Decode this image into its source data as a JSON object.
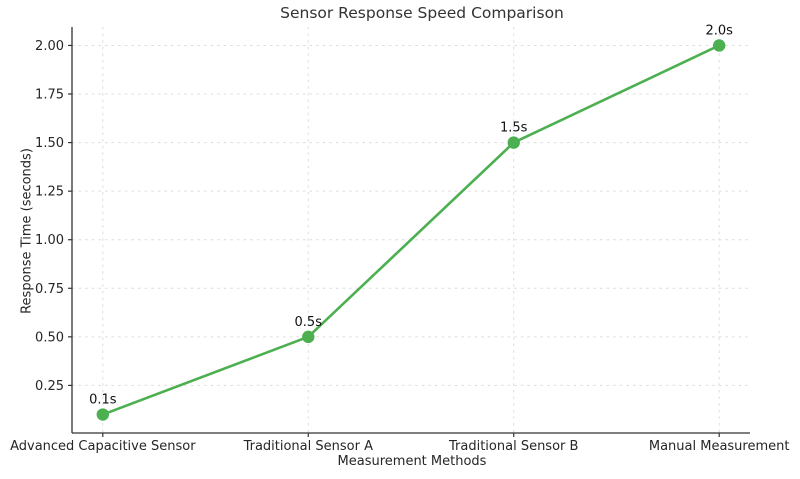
{
  "figure": {
    "background": "#ffffff"
  },
  "chart_data": {
    "type": "line",
    "title": "Sensor Response Speed Comparison",
    "xlabel": "Measurement Methods",
    "ylabel": "Response Time (seconds)",
    "categories": [
      "Advanced Capacitive Sensor",
      "Traditional Sensor A",
      "Traditional Sensor B",
      "Manual Measurement"
    ],
    "values": [
      0.1,
      0.5,
      1.5,
      2.0
    ],
    "point_labels": [
      "0.1s",
      "0.5s",
      "1.5s",
      "2.0s"
    ],
    "yticks": [
      0.25,
      0.5,
      0.75,
      1.0,
      1.25,
      1.5,
      1.75,
      2.0
    ],
    "ytick_labels": [
      "0.25",
      "0.50",
      "0.75",
      "1.00",
      "1.25",
      "1.50",
      "1.75",
      "2.00"
    ],
    "ylim": [
      0.005,
      2.095
    ],
    "xlim": [
      -0.15,
      3.15
    ],
    "grid": true,
    "grid_style": "dashed",
    "grid_color": "#dcdcdc",
    "axis_color": "#333333",
    "text_color": "#262626",
    "annotation_color": "#111111",
    "line_color": "#4caf50",
    "marker": "circle",
    "legend": "none",
    "spines": [
      "left",
      "bottom"
    ]
  }
}
